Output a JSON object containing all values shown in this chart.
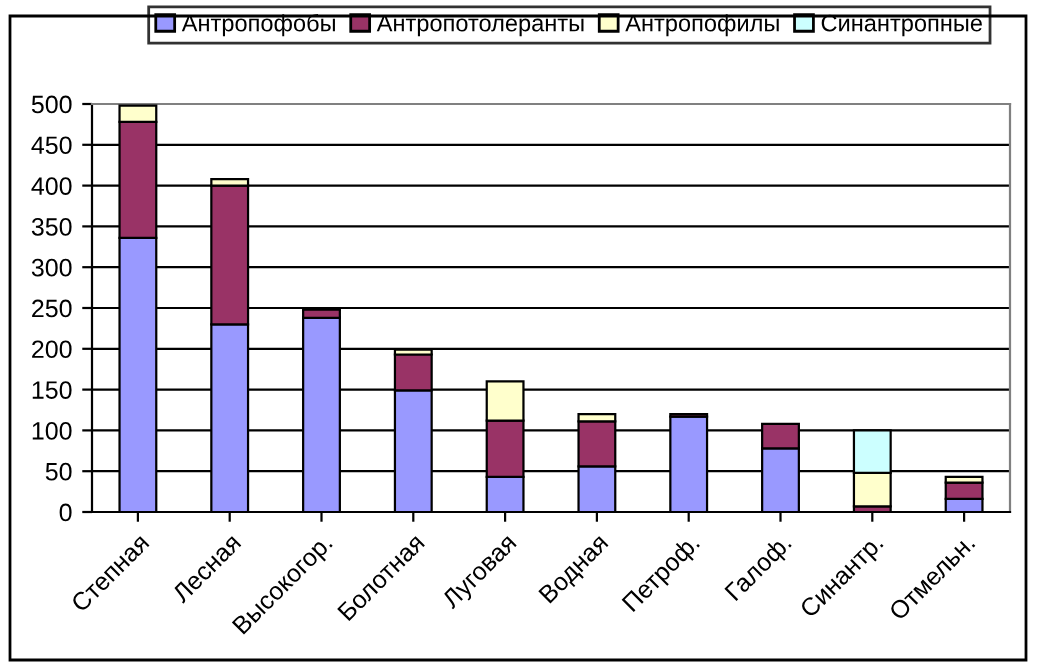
{
  "chart_data": {
    "type": "bar",
    "stacked": true,
    "categories": [
      "Степная",
      "Лесная",
      "Высокогор.",
      "Болотная",
      "Луговая",
      "Водная",
      "Петроф.",
      "Галоф.",
      "Синантр.",
      "Отмельн."
    ],
    "series": [
      {
        "name": "Антропофобы",
        "color": "#9999ff",
        "values": [
          336,
          230,
          238,
          149,
          43,
          56,
          117,
          78,
          null,
          16
        ]
      },
      {
        "name": "Антропотолеранты",
        "color": "#993366",
        "values": [
          142,
          170,
          10,
          44,
          69,
          55,
          3,
          30,
          7,
          20
        ]
      },
      {
        "name": "Антропофилы",
        "color": "#ffffcc",
        "values": [
          20,
          8,
          null,
          6,
          48,
          9,
          null,
          null,
          41,
          7
        ]
      },
      {
        "name": "Синантропные",
        "color": "#ccffff",
        "values": [
          null,
          null,
          null,
          null,
          null,
          null,
          null,
          null,
          52,
          null
        ]
      }
    ],
    "ylim": [
      0,
      500
    ],
    "yticks": [
      0,
      50,
      100,
      150,
      200,
      250,
      300,
      350,
      400,
      450,
      500
    ],
    "grid": "y",
    "legend": "top"
  }
}
